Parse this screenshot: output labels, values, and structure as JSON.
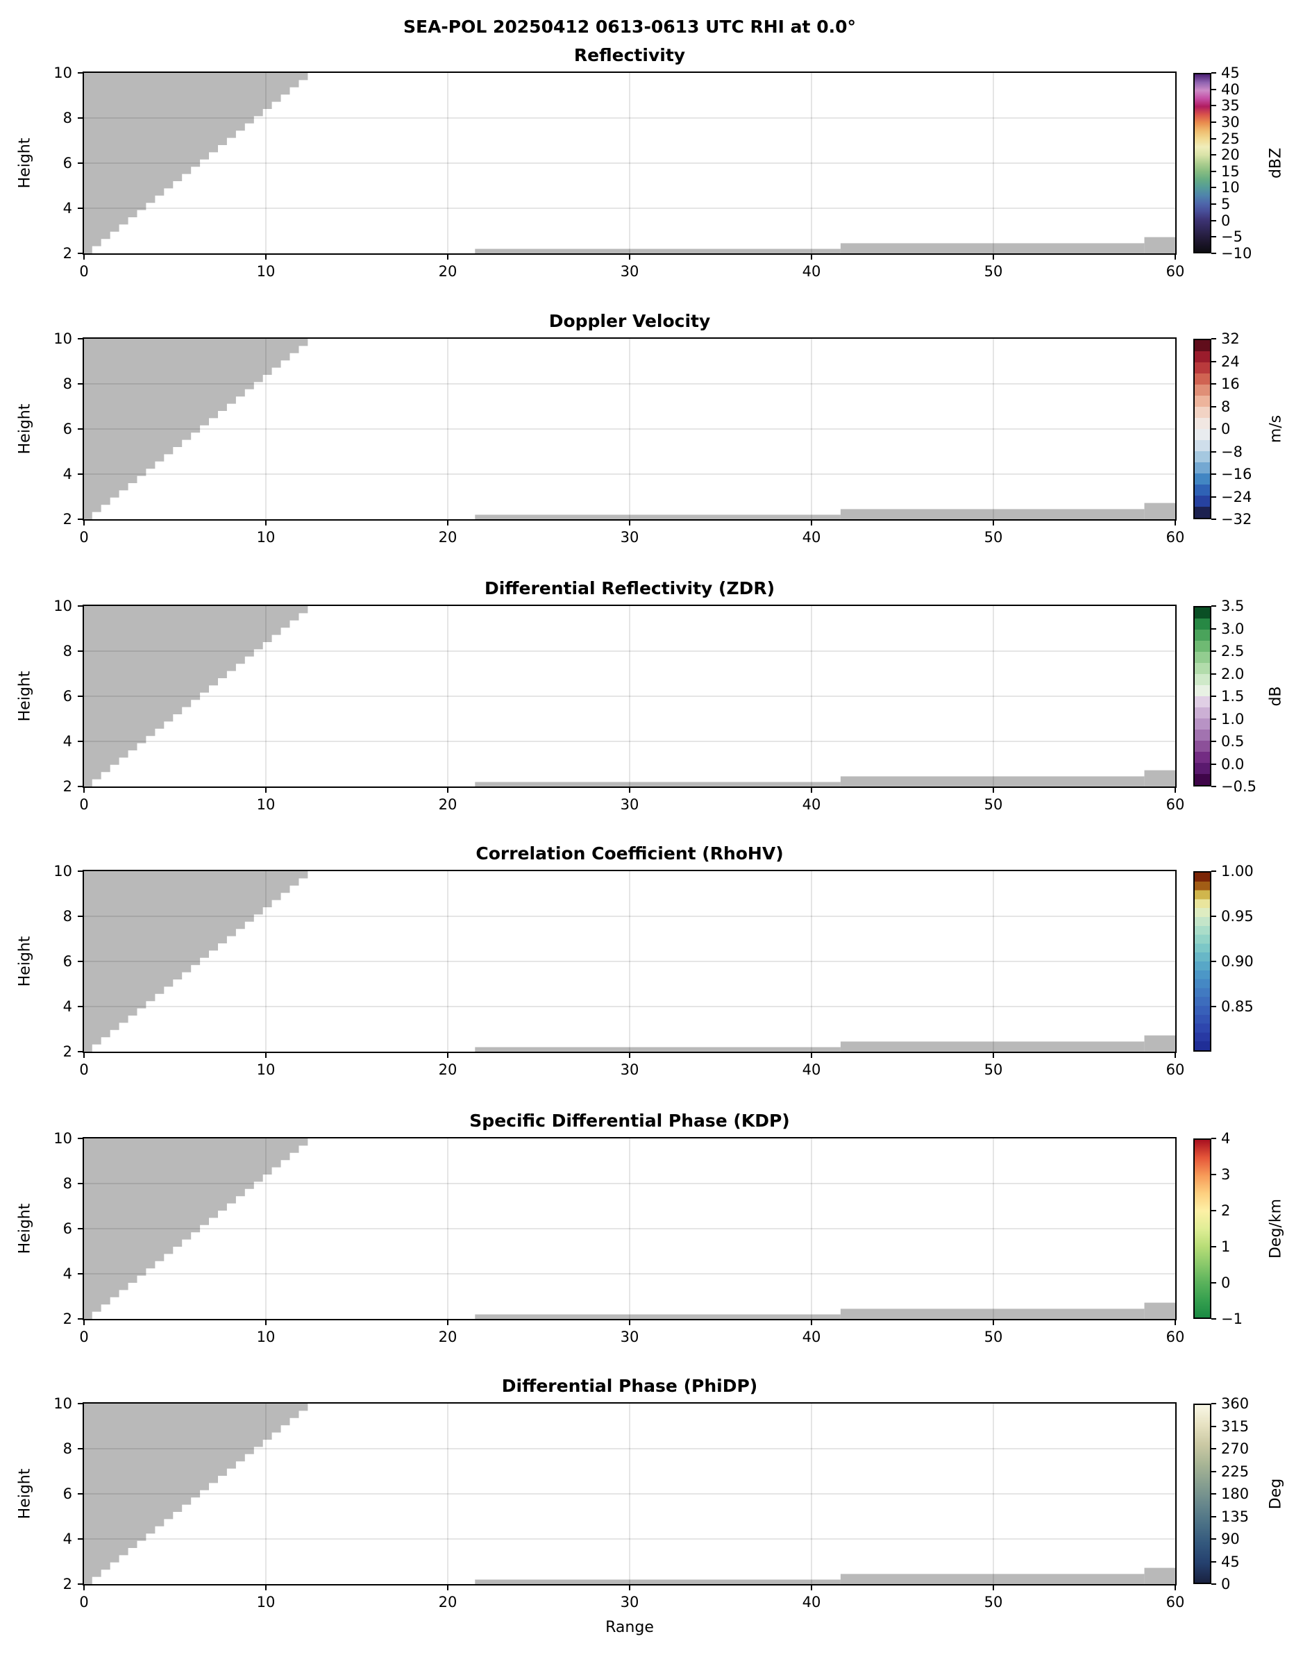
{
  "page": {
    "suptitle": "SEA-POL 20250412 0613-0613 UTC RHI at 0.0°",
    "xlabel": "Range",
    "ylabel": "Height"
  },
  "chart_data": {
    "type": "heatmap",
    "subtype": "radar-rhi-multipanel",
    "suptitle": "SEA-POL 20250412 0613-0613 UTC RHI at 0.0°",
    "xlabel": "Range",
    "ylabel": "Height",
    "x_range": [
      0,
      60
    ],
    "y_range": [
      2,
      10
    ],
    "x_ticks": [
      "0",
      "10",
      "20",
      "30",
      "40",
      "50",
      "60"
    ],
    "x_tick_values": [
      0,
      10,
      20,
      30,
      40,
      50,
      60
    ],
    "y_ticks": [
      "2",
      "4",
      "6",
      "8",
      "10"
    ],
    "y_tick_values": [
      2,
      4,
      6,
      8,
      10
    ],
    "grid_x": [
      10,
      20,
      30,
      40,
      50
    ],
    "grid_y": [
      4,
      6,
      8
    ],
    "grid_on": true,
    "masked_color": "#b9b9b9",
    "masked_wedge": {
      "comment": "stair-stepped gray no-data wedge, identical in all panels",
      "x_start": 0.45,
      "y_start": 2,
      "x_end": 12.8,
      "y_end": 10,
      "steps": 25
    },
    "masked_strips": [
      {
        "x0": 21.5,
        "x1": 41.6,
        "y_top": 2.2
      },
      {
        "x0": 41.6,
        "x1": 58.3,
        "y_top": 2.45
      },
      {
        "x0": 58.3,
        "x1": 60.0,
        "y_top": 2.72
      }
    ],
    "panels": [
      {
        "title": "Reflectivity",
        "units": "dBZ",
        "range": [
          -10,
          45
        ],
        "smooth": true,
        "ticks": [
          {
            "v": 45,
            "label": "45"
          },
          {
            "v": 40,
            "label": "40"
          },
          {
            "v": 35,
            "label": "35"
          },
          {
            "v": 30,
            "label": "30"
          },
          {
            "v": 25,
            "label": "25"
          },
          {
            "v": 20,
            "label": "20"
          },
          {
            "v": 15,
            "label": "15"
          },
          {
            "v": 10,
            "label": "10"
          },
          {
            "v": 5,
            "label": "5"
          },
          {
            "v": 0,
            "label": "0"
          },
          {
            "v": -5,
            "label": "−5"
          },
          {
            "v": -10,
            "label": "−10"
          }
        ],
        "colors": [
          "#0d0d13",
          "#1a1428",
          "#261e40",
          "#32295b",
          "#3d3475",
          "#484d98",
          "#4e66ab",
          "#4f84ab",
          "#559c98",
          "#67ad83",
          "#88bd81",
          "#aecf90",
          "#d9e3a8",
          "#f0edba",
          "#f1da92",
          "#efbc6f",
          "#e98c4e",
          "#d9534b",
          "#b01c5f",
          "#c54fa5",
          "#cd8bc7",
          "#8f63b0",
          "#4a1e72"
        ]
      },
      {
        "title": "Doppler Velocity",
        "units": "m/s",
        "range": [
          -32,
          32
        ],
        "smooth": false,
        "ticks": [
          {
            "v": 32,
            "label": "32"
          },
          {
            "v": 24,
            "label": "24"
          },
          {
            "v": 16,
            "label": "16"
          },
          {
            "v": 8,
            "label": "8"
          },
          {
            "v": 0,
            "label": "0"
          },
          {
            "v": -8,
            "label": "−8"
          },
          {
            "v": -16,
            "label": "−16"
          },
          {
            "v": -24,
            "label": "−24"
          },
          {
            "v": -32,
            "label": "−32"
          }
        ],
        "colors": [
          "#1c2150",
          "#2742a0",
          "#2f62b5",
          "#4286c3",
          "#74a8d2",
          "#a5c8e0",
          "#cfdeeb",
          "#e9ecef",
          "#f1e7e2",
          "#f2d3c4",
          "#edb49c",
          "#e08f77",
          "#d06352",
          "#b93a3c",
          "#9a1c2c",
          "#600d1b"
        ]
      },
      {
        "title": "Differential Reflectivity (ZDR)",
        "units": "dB",
        "range": [
          -0.5,
          3.5
        ],
        "smooth": false,
        "ticks": [
          {
            "v": 3.5,
            "label": "3.5"
          },
          {
            "v": 3.0,
            "label": "3.0"
          },
          {
            "v": 2.5,
            "label": "2.5"
          },
          {
            "v": 2.0,
            "label": "2.0"
          },
          {
            "v": 1.5,
            "label": "1.5"
          },
          {
            "v": 1.0,
            "label": "1.0"
          },
          {
            "v": 0.5,
            "label": "0.5"
          },
          {
            "v": 0.0,
            "label": "0.0"
          },
          {
            "v": -0.5,
            "label": "−0.5"
          }
        ],
        "colors": [
          "#3f0649",
          "#5a1a6e",
          "#732c83",
          "#8c5099",
          "#a273b0",
          "#b893c5",
          "#ccb0d5",
          "#e0cfe5",
          "#e8f1e4",
          "#cfe9c9",
          "#b2dcab",
          "#93cd90",
          "#6fba73",
          "#4aa35b",
          "#278844",
          "#0a4f25"
        ]
      },
      {
        "title": "Correlation Coefficient (RhoHV)",
        "units": "",
        "range": [
          0.8,
          1.0
        ],
        "smooth": false,
        "ticks": [
          {
            "v": 1.0,
            "label": "1.00"
          },
          {
            "v": 0.95,
            "label": "0.95"
          },
          {
            "v": 0.9,
            "label": "0.90"
          },
          {
            "v": 0.85,
            "label": "0.85"
          }
        ],
        "colors": [
          "#202e97",
          "#2839a3",
          "#2e46ad",
          "#3353b3",
          "#3860b9",
          "#3d6dbd",
          "#417ac1",
          "#4588c4",
          "#4c97c7",
          "#58a7c7",
          "#68b7c7",
          "#7cc7c7",
          "#92d3c7",
          "#aaddc9",
          "#c4e5c9",
          "#deecc1",
          "#e9e59d",
          "#d0b64d",
          "#a25d15",
          "#7b2607"
        ]
      },
      {
        "title": "Specific Differential Phase (KDP)",
        "units": "Deg/km",
        "range": [
          -1,
          4
        ],
        "smooth": true,
        "ticks": [
          {
            "v": 4,
            "label": "4"
          },
          {
            "v": 3,
            "label": "3"
          },
          {
            "v": 2,
            "label": "2"
          },
          {
            "v": 1,
            "label": "1"
          },
          {
            "v": 0,
            "label": "0"
          },
          {
            "v": -1,
            "label": "−1"
          }
        ],
        "colors": [
          "#1a8a43",
          "#36a04f",
          "#5cb35c",
          "#8ac96b",
          "#b8dd77",
          "#e0ee96",
          "#fdf0a6",
          "#fdcf7f",
          "#f79a58",
          "#e55639",
          "#a81020"
        ]
      },
      {
        "title": "Differential Phase (PhiDP)",
        "units": "Deg",
        "range": [
          0,
          360
        ],
        "smooth": true,
        "ticks": [
          {
            "v": 360,
            "label": "360"
          },
          {
            "v": 315,
            "label": "315"
          },
          {
            "v": 270,
            "label": "270"
          },
          {
            "v": 225,
            "label": "225"
          },
          {
            "v": 180,
            "label": "180"
          },
          {
            "v": 135,
            "label": "135"
          },
          {
            "v": 90,
            "label": "90"
          },
          {
            "v": 45,
            "label": "45"
          },
          {
            "v": 0,
            "label": "0"
          }
        ],
        "colors": [
          "#1a2240",
          "#25406e",
          "#33587d",
          "#4b7186",
          "#68888c",
          "#879f90",
          "#a8b595",
          "#cbc9a4",
          "#e7e2c2",
          "#f9f7e6"
        ]
      }
    ]
  }
}
